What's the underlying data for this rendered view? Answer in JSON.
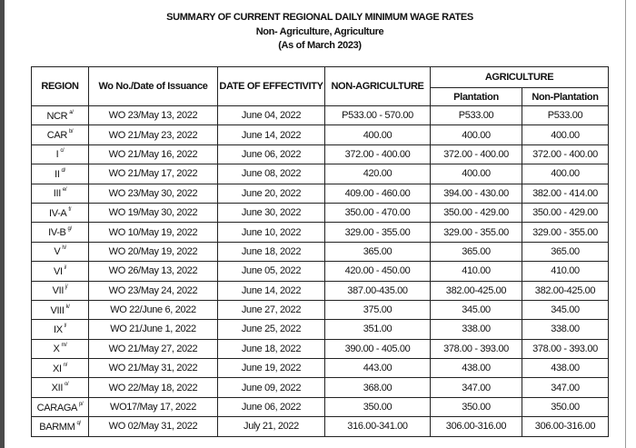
{
  "title": "SUMMARY OF CURRENT REGIONAL DAILY MINIMUM WAGE RATES",
  "subtitle": "Non- Agriculture, Agriculture",
  "as_of": "(As of March 2023)",
  "headers": {
    "region": "REGION",
    "wo": "Wo No./Date of Issuance",
    "effectivity": "DATE OF EFFECTIVITY",
    "non_agri": "NON-AGRICULTURE",
    "agri": "AGRICULTURE",
    "plantation": "Plantation",
    "non_plantation": "Non-Plantation"
  },
  "rows": [
    {
      "region": "NCR",
      "note": "a/",
      "wo": "WO 23/May 13, 2022",
      "eff": "June 04, 2022",
      "non_agri": "P533.00 - 570.00",
      "plant": "P533.00",
      "nonplant": "P533.00"
    },
    {
      "region": "CAR",
      "note": "b/",
      "wo": "WO 21/May 23, 2022",
      "eff": "June 14, 2022",
      "non_agri": "400.00",
      "plant": "400.00",
      "nonplant": "400.00"
    },
    {
      "region": "I",
      "note": "c/",
      "wo": "WO 21/May 16, 2022",
      "eff": "June 06, 2022",
      "non_agri": "372.00 - 400.00",
      "plant": "372.00 - 400.00",
      "nonplant": "372.00 - 400.00"
    },
    {
      "region": "II",
      "note": "d/",
      "wo": "WO 21/May 17, 2022",
      "eff": "June 08, 2022",
      "non_agri": "420.00",
      "plant": "400.00",
      "nonplant": "400.00"
    },
    {
      "region": "III",
      "note": "e/",
      "wo": "WO 23/May 30, 2022",
      "eff": "June 20, 2022",
      "non_agri": "409.00 - 460.00",
      "plant": "394.00 - 430.00",
      "nonplant": "382.00 - 414.00"
    },
    {
      "region": "IV-A",
      "note": "f/",
      "wo": "WO 19/May 30, 2022",
      "eff": "June 30, 2022",
      "non_agri": "350.00 - 470.00",
      "plant": "350.00 - 429.00",
      "nonplant": "350.00 - 429.00"
    },
    {
      "region": "IV-B",
      "note": "g/",
      "wo": "WO 10/May 19, 2022",
      "eff": "June 10, 2022",
      "non_agri": "329.00 - 355.00",
      "plant": "329.00 - 355.00",
      "nonplant": "329.00 - 355.00"
    },
    {
      "region": "V",
      "note": "h/",
      "wo": "WO 20/May 19, 2022",
      "eff": "June 18, 2022",
      "non_agri": "365.00",
      "plant": "365.00",
      "nonplant": "365.00"
    },
    {
      "region": "VI",
      "note": "i/",
      "wo": "WO 26/May 13, 2022",
      "eff": "June 05, 2022",
      "non_agri": "420.00 - 450.00",
      "plant": "410.00",
      "nonplant": "410.00"
    },
    {
      "region": "VII",
      "note": "j/",
      "wo": "WO 23/May 24, 2022",
      "eff": "June 14, 2022",
      "non_agri": "387.00-435.00",
      "plant": "382.00-425.00",
      "nonplant": "382.00-425.00"
    },
    {
      "region": "VIII",
      "note": "k/",
      "wo": "WO 22/June 6, 2022",
      "eff": "June 27, 2022",
      "non_agri": "375.00",
      "plant": "345.00",
      "nonplant": "345.00"
    },
    {
      "region": "IX",
      "note": "l/",
      "wo": "WO 21/June 1, 2022",
      "eff": "June 25, 2022",
      "non_agri": "351.00",
      "plant": "338.00",
      "nonplant": "338.00"
    },
    {
      "region": "X",
      "note": "m/",
      "wo": "WO 21/May 27, 2022",
      "eff": "June 18, 2022",
      "non_agri": "390.00 - 405.00",
      "plant": "378.00 - 393.00",
      "nonplant": "378.00 - 393.00"
    },
    {
      "region": "XI",
      "note": "n/",
      "wo": "WO 21/May 31, 2022",
      "eff": "June 19, 2022",
      "non_agri": "443.00",
      "plant": "438.00",
      "nonplant": "438.00"
    },
    {
      "region": "XII",
      "note": "o/",
      "wo": "WO 22/May 18, 2022",
      "eff": "June 09, 2022",
      "non_agri": "368.00",
      "plant": "347.00",
      "nonplant": "347.00"
    },
    {
      "region": "CARAGA",
      "note": "p/",
      "wo": "WO17/May 17, 2022",
      "eff": "June 06, 2022",
      "non_agri": "350.00",
      "plant": "350.00",
      "nonplant": "350.00"
    },
    {
      "region": "BARMM",
      "note": "q/",
      "wo": "WO 02/May 31, 2022",
      "eff": "July 21, 2022",
      "non_agri": "316.00-341.00",
      "plant": "306.00-316.00",
      "nonplant": "306.00-316.00"
    }
  ]
}
